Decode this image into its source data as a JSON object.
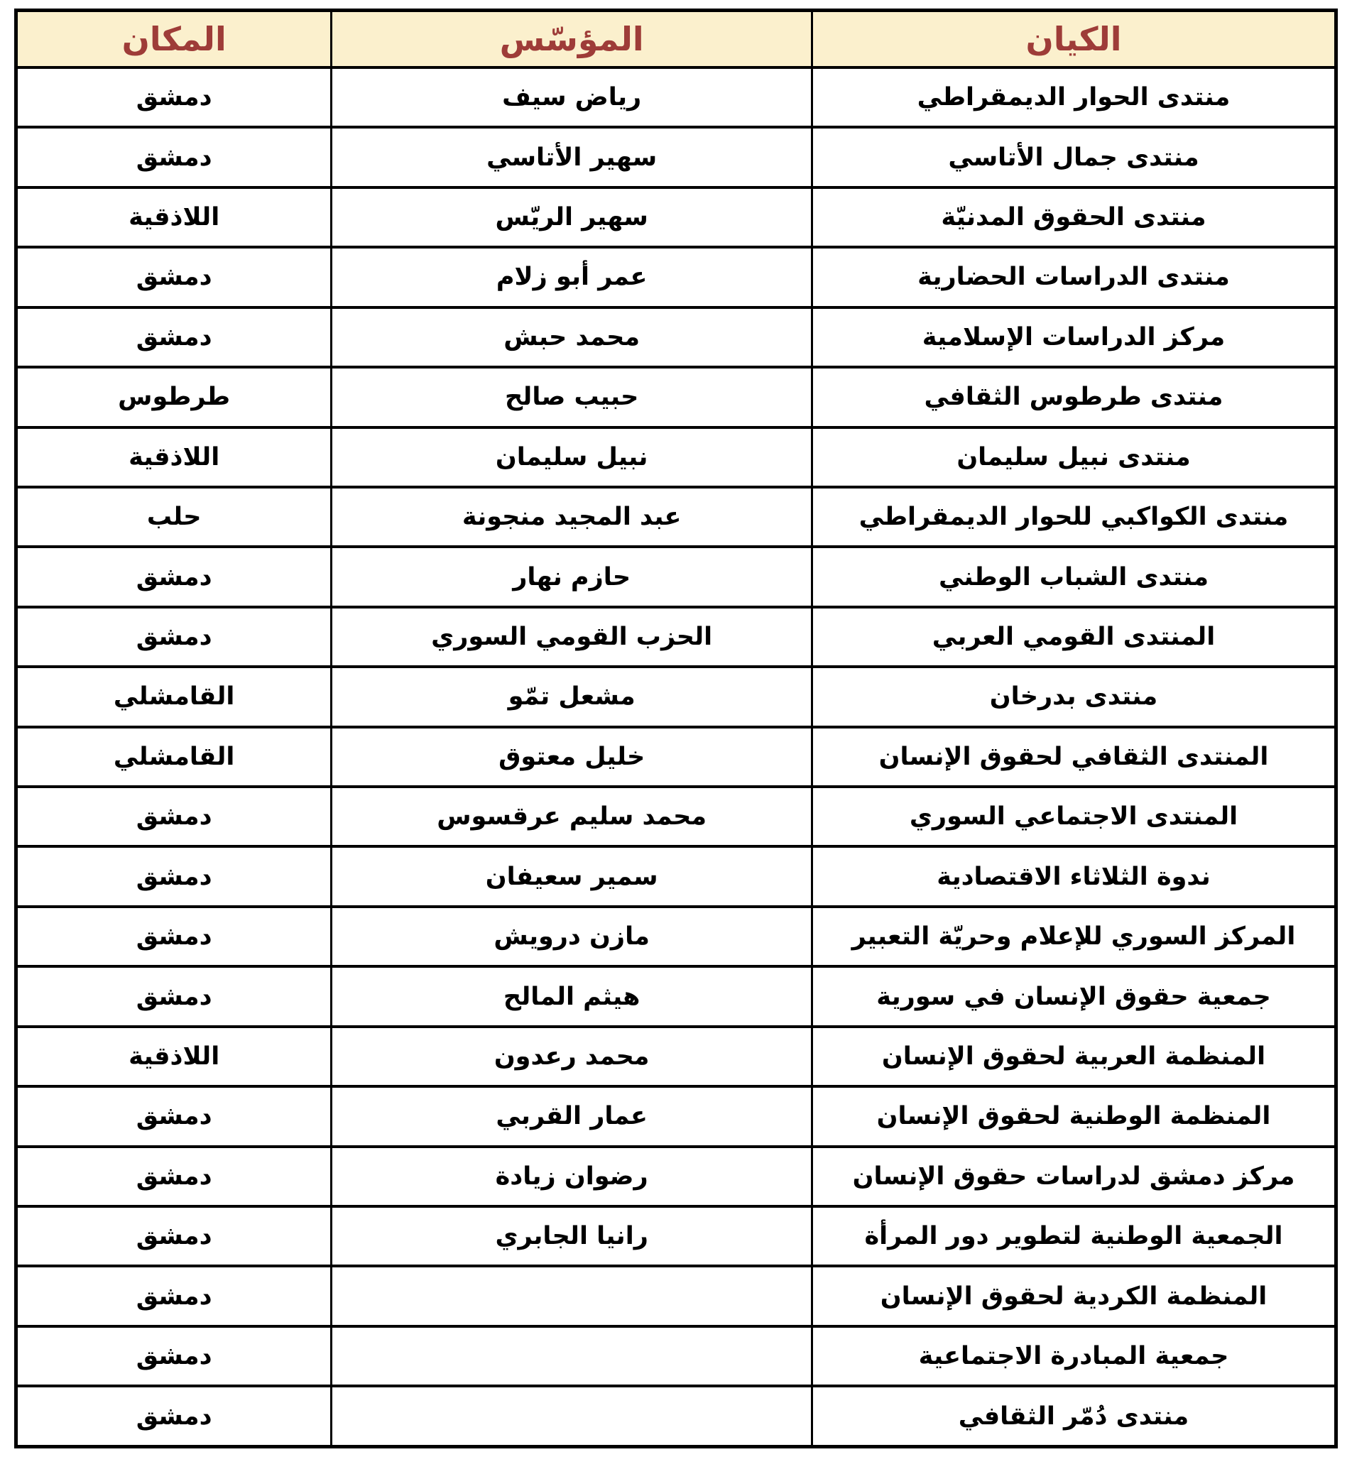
{
  "colors": {
    "header_background": "#FBF0CD",
    "header_text": "#9E3C38",
    "border": "#000000",
    "body_text": "#000000",
    "page_background": "#FFFFFF"
  },
  "table": {
    "direction": "rtl",
    "header": {
      "columns": [
        {
          "key": "entity",
          "label": "الكيان"
        },
        {
          "key": "founder",
          "label": "المؤسّس"
        },
        {
          "key": "place",
          "label": "المكان"
        }
      ]
    },
    "rows": [
      {
        "entity": "منتدى الحوار الديمقراطي",
        "founder": "رياض سيف",
        "place": "دمشق"
      },
      {
        "entity": "منتدى جمال الأتاسي",
        "founder": "سهير الأتاسي",
        "place": "دمشق"
      },
      {
        "entity": "منتدى الحقوق المدنيّة",
        "founder": "سهير الريّس",
        "place": "اللاذقية"
      },
      {
        "entity": "منتدى الدراسات الحضارية",
        "founder": "عمر أبو زلام",
        "place": "دمشق"
      },
      {
        "entity": "مركز الدراسات الإسلامية",
        "founder": "محمد حبش",
        "place": "دمشق"
      },
      {
        "entity": "منتدى طرطوس الثقافي",
        "founder": "حبيب صالح",
        "place": "طرطوس"
      },
      {
        "entity": "منتدى نبيل سليمان",
        "founder": "نبيل سليمان",
        "place": "اللاذقية"
      },
      {
        "entity": "منتدى الكواكبي للحوار الديمقراطي",
        "founder": "عبد المجيد منجونة",
        "place": "حلب"
      },
      {
        "entity": "منتدى الشباب الوطني",
        "founder": "حازم نهار",
        "place": "دمشق"
      },
      {
        "entity": "المنتدى القومي العربي",
        "founder": "الحزب القومي السوري",
        "place": "دمشق"
      },
      {
        "entity": "منتدى بدرخان",
        "founder": "مشعل تمّو",
        "place": "القامشلي"
      },
      {
        "entity": "المنتدى الثقافي لحقوق الإنسان",
        "founder": "خليل معتوق",
        "place": "القامشلي"
      },
      {
        "entity": "المنتدى الاجتماعي السوري",
        "founder": "محمد سليم عرقسوس",
        "place": "دمشق"
      },
      {
        "entity": "ندوة الثلاثاء الاقتصادية",
        "founder": "سمير سعيفان",
        "place": "دمشق"
      },
      {
        "entity": "المركز السوري للإعلام وحريّة التعبير",
        "founder": "مازن درويش",
        "place": "دمشق"
      },
      {
        "entity": "جمعية حقوق الإنسان في سورية",
        "founder": "هيثم المالح",
        "place": "دمشق"
      },
      {
        "entity": "المنظمة العربية لحقوق الإنسان",
        "founder": "محمد رعدون",
        "place": "اللاذقية"
      },
      {
        "entity": "المنظمة الوطنية لحقوق الإنسان",
        "founder": "عمار القربي",
        "place": "دمشق"
      },
      {
        "entity": "مركز دمشق لدراسات حقوق الإنسان",
        "founder": "رضوان زيادة",
        "place": "دمشق"
      },
      {
        "entity": "الجمعية الوطنية لتطوير دور المرأة",
        "founder": "رانيا الجابري",
        "place": "دمشق"
      },
      {
        "entity": "المنظمة الكردية لحقوق الإنسان",
        "founder": "",
        "place": "دمشق"
      },
      {
        "entity": "جمعية المبادرة الاجتماعية",
        "founder": "",
        "place": "دمشق"
      },
      {
        "entity": "منتدى دُمّر الثقافي",
        "founder": "",
        "place": "دمشق"
      }
    ]
  }
}
